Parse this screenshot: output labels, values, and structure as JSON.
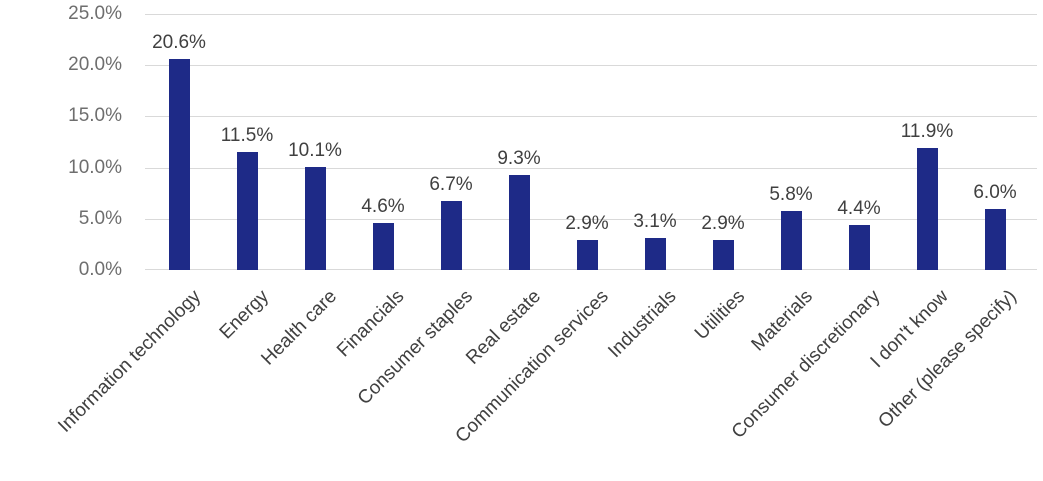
{
  "chart_data": {
    "type": "bar",
    "title": "",
    "xlabel": "",
    "ylabel": "",
    "categories": [
      "Information technology",
      "Energy",
      "Health care",
      "Financials",
      "Consumer staples",
      "Real estate",
      "Communication services",
      "Industrials",
      "Utilities",
      "Materials",
      "Consumer discretionary",
      "I don't know",
      "Other (please specify)"
    ],
    "values": [
      20.6,
      11.5,
      10.1,
      4.6,
      6.7,
      9.3,
      2.9,
      3.1,
      2.9,
      5.8,
      4.4,
      11.9,
      6.0
    ],
    "value_labels": [
      "20.6%",
      "11.5%",
      "10.1%",
      "4.6%",
      "6.7%",
      "9.3%",
      "2.9%",
      "3.1%",
      "2.9%",
      "5.8%",
      "4.4%",
      "11.9%",
      "6.0%"
    ],
    "ylim": [
      0,
      25
    ],
    "ytick_step": 5,
    "ytick_labels": [
      "0.0%",
      "5.0%",
      "10.0%",
      "15.0%",
      "20.0%",
      "25.0%"
    ],
    "grid": true,
    "legend": "none",
    "x_label_rotation_deg": 45,
    "colors": {
      "bar": "#1e2a87",
      "gridline": "#d9d9d9",
      "ytick_label": "#6e6e6e",
      "data_label": "#404040",
      "xtick_label": "#404040",
      "background": "#ffffff"
    }
  }
}
